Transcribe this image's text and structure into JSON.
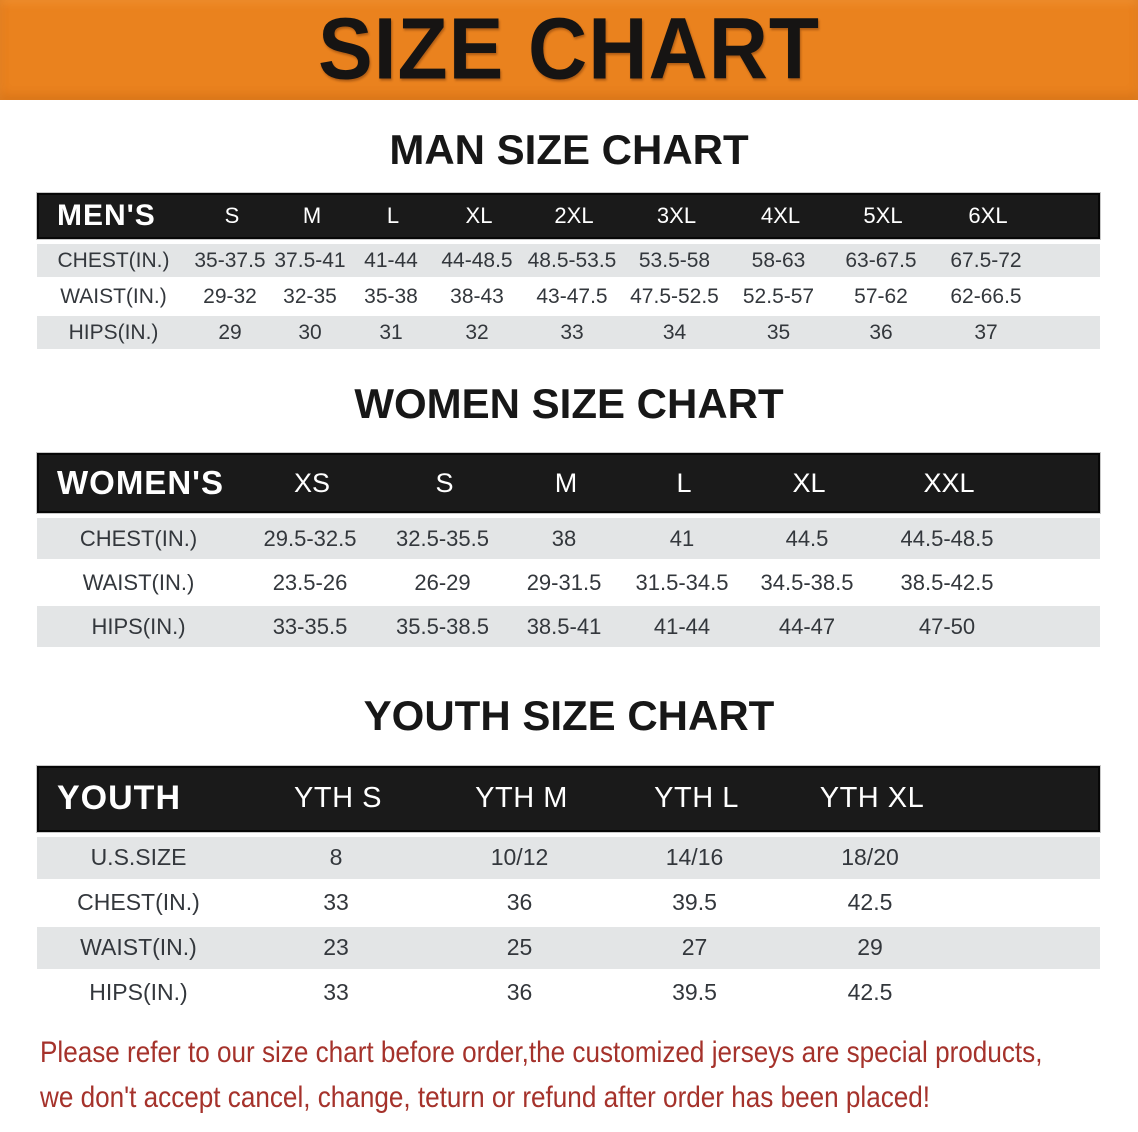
{
  "banner": {
    "title": "SIZE CHART"
  },
  "theme": {
    "banner_bg": "#EA821E",
    "banner_text": "#161413",
    "header_bar_bg": "#1a1a1a",
    "header_bar_text": "#ffffff",
    "stripe_color": "#e3e5e6",
    "disclaimer_color": "#A5322B"
  },
  "sections": [
    {
      "heading": "MAN SIZE CHART",
      "header_label": "MEN'S",
      "columns": [
        "S",
        "M",
        "L",
        "XL",
        "2XL",
        "3XL",
        "4XL",
        "5XL",
        "6XL"
      ],
      "rows": [
        {
          "label": "CHEST(IN.)",
          "values": [
            "35-37.5",
            "37.5-41",
            "41-44",
            "44-48.5",
            "48.5-53.5",
            "53.5-58",
            "58-63",
            "63-67.5",
            "67.5-72"
          ]
        },
        {
          "label": "WAIST(IN.)",
          "values": [
            "29-32",
            "32-35",
            "35-38",
            "38-43",
            "43-47.5",
            "47.5-52.5",
            "52.5-57",
            "57-62",
            "62-66.5"
          ]
        },
        {
          "label": "HIPS(IN.)",
          "values": [
            "29",
            "30",
            "31",
            "32",
            "33",
            "34",
            "35",
            "36",
            "37"
          ]
        }
      ]
    },
    {
      "heading": "WOMEN SIZE CHART",
      "header_label": "WOMEN'S",
      "columns": [
        "XS",
        "S",
        "M",
        "L",
        "XL",
        "XXL"
      ],
      "rows": [
        {
          "label": "CHEST(IN.)",
          "values": [
            "29.5-32.5",
            "32.5-35.5",
            "38",
            "41",
            "44.5",
            "44.5-48.5"
          ]
        },
        {
          "label": "WAIST(IN.)",
          "values": [
            "23.5-26",
            "26-29",
            "29-31.5",
            "31.5-34.5",
            "34.5-38.5",
            "38.5-42.5"
          ]
        },
        {
          "label": "HIPS(IN.)",
          "values": [
            "33-35.5",
            "35.5-38.5",
            "38.5-41",
            "41-44",
            "44-47",
            "47-50"
          ]
        }
      ]
    },
    {
      "heading": "YOUTH SIZE CHART",
      "header_label": "YOUTH",
      "columns": [
        "YTH S",
        "YTH M",
        "YTH L",
        "YTH XL"
      ],
      "rows": [
        {
          "label": "U.S.SIZE",
          "values": [
            "8",
            "10/12",
            "14/16",
            "18/20"
          ]
        },
        {
          "label": "CHEST(IN.)",
          "values": [
            "33",
            "36",
            "39.5",
            "42.5"
          ]
        },
        {
          "label": "WAIST(IN.)",
          "values": [
            "23",
            "25",
            "27",
            "29"
          ]
        },
        {
          "label": "HIPS(IN.)",
          "values": [
            "33",
            "36",
            "39.5",
            "42.5"
          ]
        }
      ]
    }
  ],
  "disclaimer": {
    "line1": "Please refer to our size chart before order,the customized jerseys are special products,",
    "line2": "we don't accept cancel, change, teturn or refund after order has been placed!"
  }
}
